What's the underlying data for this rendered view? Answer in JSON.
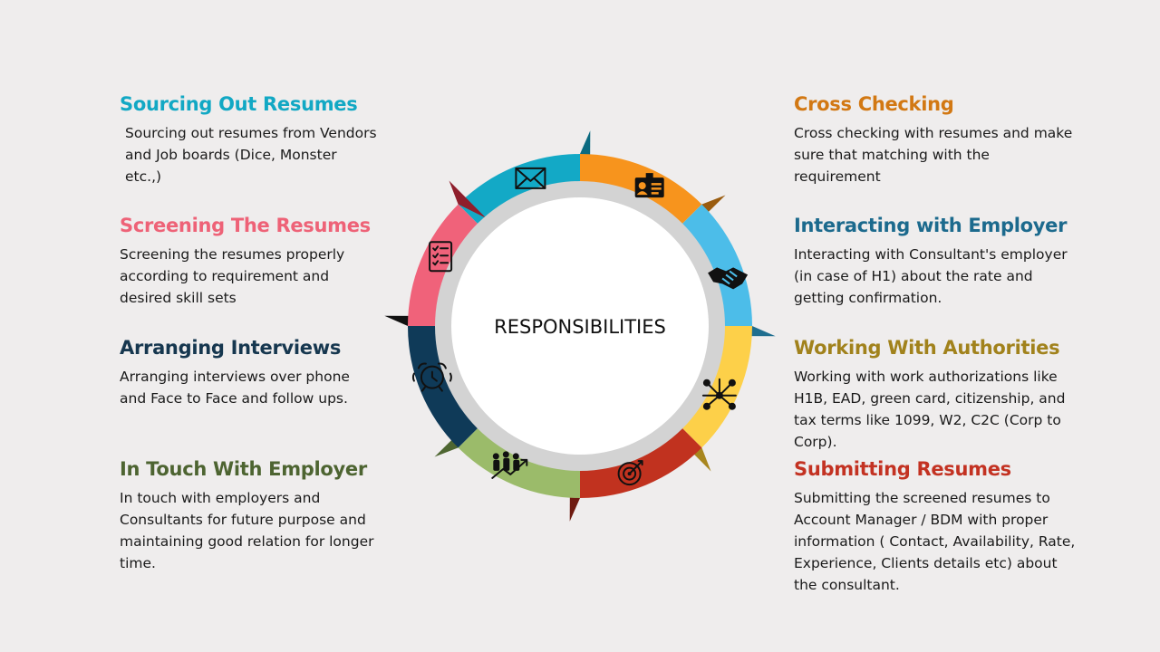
{
  "center_label": "RESPONSIBILITIES",
  "colors": {
    "background": "#efeded",
    "ring": "#d3d3d3",
    "center": "#ffffff"
  },
  "left_items": [
    {
      "title": "Sourcing  Out Resumes",
      "color": "#12a8c4",
      "lines": [
        "Sourcing out resumes from Vendors",
        "and Job boards (Dice, Monster",
        "etc.,)"
      ]
    },
    {
      "title": "Screening The Resumes",
      "color": "#ee6277",
      "lines": [
        "Screening the resumes properly",
        "according to requirement and",
        "desired skill sets"
      ]
    },
    {
      "title": "Arranging Interviews",
      "color": "#16374f",
      "lines": [
        "Arranging interviews over phone",
        "and Face to Face and follow ups."
      ]
    },
    {
      "title": "In Touch With Employer",
      "color": "#4d6431",
      "lines": [
        "In touch with employers and",
        "Consultants for future purpose and",
        "maintaining good relation for longer",
        "time."
      ]
    }
  ],
  "right_items": [
    {
      "title": "Cross Checking",
      "color": "#d27813",
      "lines": [
        "Cross checking with resumes and make",
        "sure that matching with the",
        "requirement"
      ]
    },
    {
      "title": "Interacting with Employer",
      "color": "#1c6a8d",
      "lines": [
        "Interacting with Consultant's employer",
        "(in case of H1) about the rate and",
        "getting confirmation."
      ]
    },
    {
      "title": "Working With Authorities",
      "color": "#a1821c",
      "lines": [
        "Working with work authorizations like",
        "H1B, EAD, green card, citizenship, and",
        "tax terms like 1099, W2, C2C (Corp to",
        "Corp)."
      ]
    },
    {
      "title": "Submitting Resumes",
      "color": "#c33222",
      "lines": [
        "Submitting the screened resumes to",
        "Account Manager / BDM with proper",
        "information ( Contact, Availability, Rate,",
        "Experience, Clients details etc) about",
        "the consultant."
      ]
    }
  ],
  "segments": [
    {
      "icon": "envelope-icon",
      "color": "#13a9c6",
      "dark": "#0b6a80"
    },
    {
      "icon": "id-card-icon",
      "color": "#f7941d",
      "dark": "#9a5c0f"
    },
    {
      "icon": "handshake-icon",
      "color": "#4cbde9",
      "dark": "#1f6e8f"
    },
    {
      "icon": "network-hands-icon",
      "color": "#fdd049",
      "dark": "#a8861e"
    },
    {
      "icon": "target-icon",
      "color": "#c1321f",
      "dark": "#6e1a10"
    },
    {
      "icon": "team-growth-icon",
      "color": "#9bbb6a",
      "dark": "#4e6631"
    },
    {
      "icon": "alarm-clock-icon",
      "color": "#0f3a58",
      "dark": "#111111"
    },
    {
      "icon": "checklist-icon",
      "color": "#f0627a",
      "dark": "#8f1e2c"
    }
  ]
}
